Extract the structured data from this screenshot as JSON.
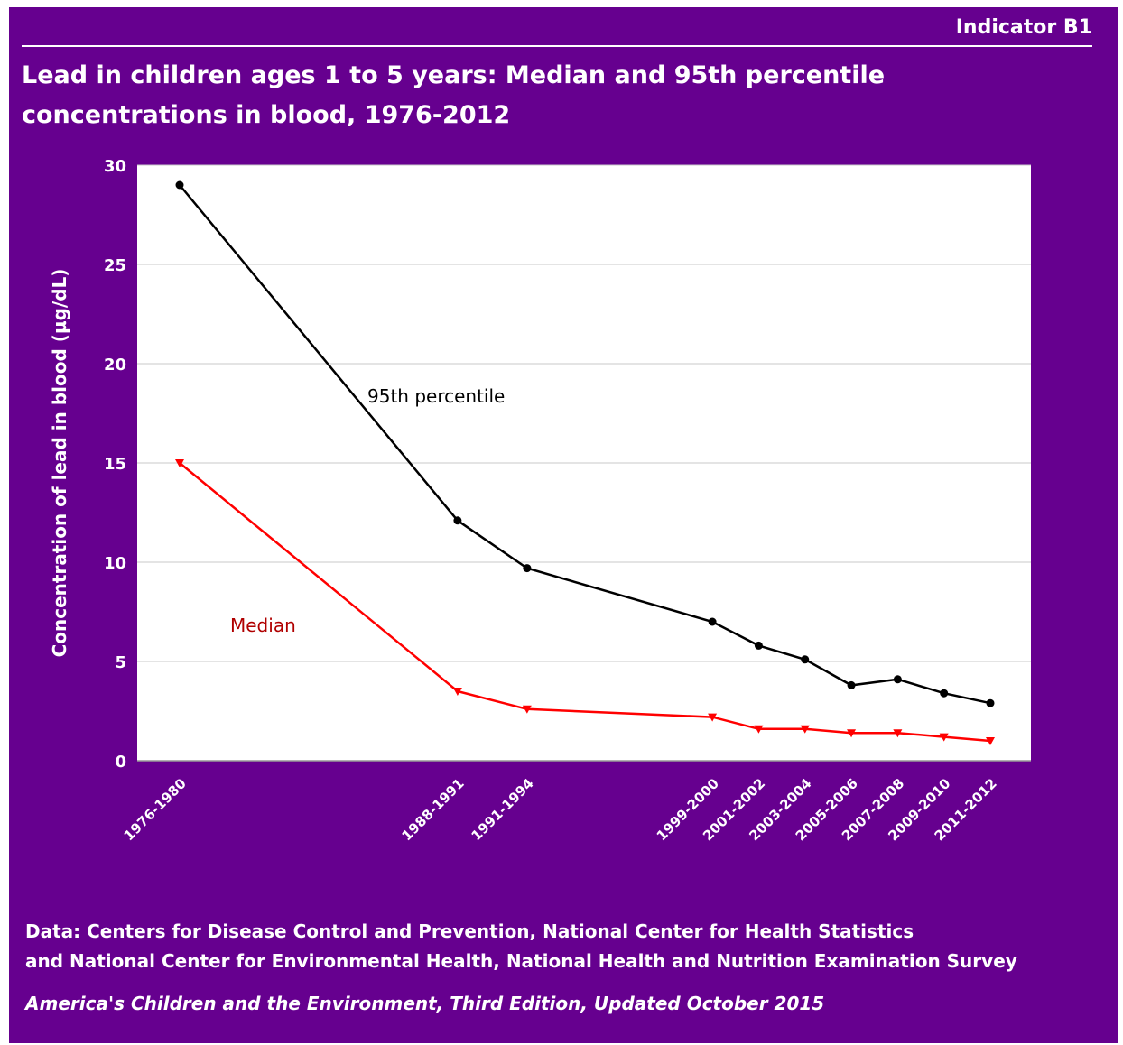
{
  "indicator": "Indicator B1",
  "title": "Lead in children ages 1 to 5 years: Median and 95th percentile concentrations in blood, 1976-2012",
  "source_line1": "Data: Centers for Disease Control and Prevention, National Center for Health Statistics",
  "source_line2": "and National Center for Environmental Health, National Health and Nutrition Examination Survey",
  "edition": "America's Children and the Environment, Third Edition, Updated October 2015",
  "colors": {
    "background": "#66008f",
    "p95": "#000000",
    "median": "#ff0000",
    "median_label": "#b00000",
    "grid": "#c8c8c8"
  },
  "chart_data": {
    "type": "line",
    "ylabel": "Concentration of lead in blood (µg/dL)",
    "ylim": [
      0,
      30
    ],
    "yticks": [
      0,
      5,
      10,
      15,
      20,
      25,
      30
    ],
    "grid": true,
    "x_start_years": [
      1976,
      1988,
      1991,
      1999,
      2001,
      2003,
      2005,
      2007,
      2009,
      2011
    ],
    "categories": [
      "1976-1980",
      "1988-1991",
      "1991-1994",
      "1999-2000",
      "2001-2002",
      "2003-2004",
      "2005-2006",
      "2007-2008",
      "2009-2010",
      "2011-2012"
    ],
    "series": [
      {
        "name": "95th percentile",
        "values": [
          29.0,
          12.1,
          9.7,
          7.0,
          5.8,
          5.1,
          3.8,
          4.1,
          3.4,
          2.9
        ],
        "marker": "circle"
      },
      {
        "name": "Median",
        "values": [
          15.0,
          3.5,
          2.6,
          2.2,
          1.6,
          1.6,
          1.4,
          1.4,
          1.2,
          1.0
        ],
        "marker": "triangle-down"
      }
    ]
  }
}
